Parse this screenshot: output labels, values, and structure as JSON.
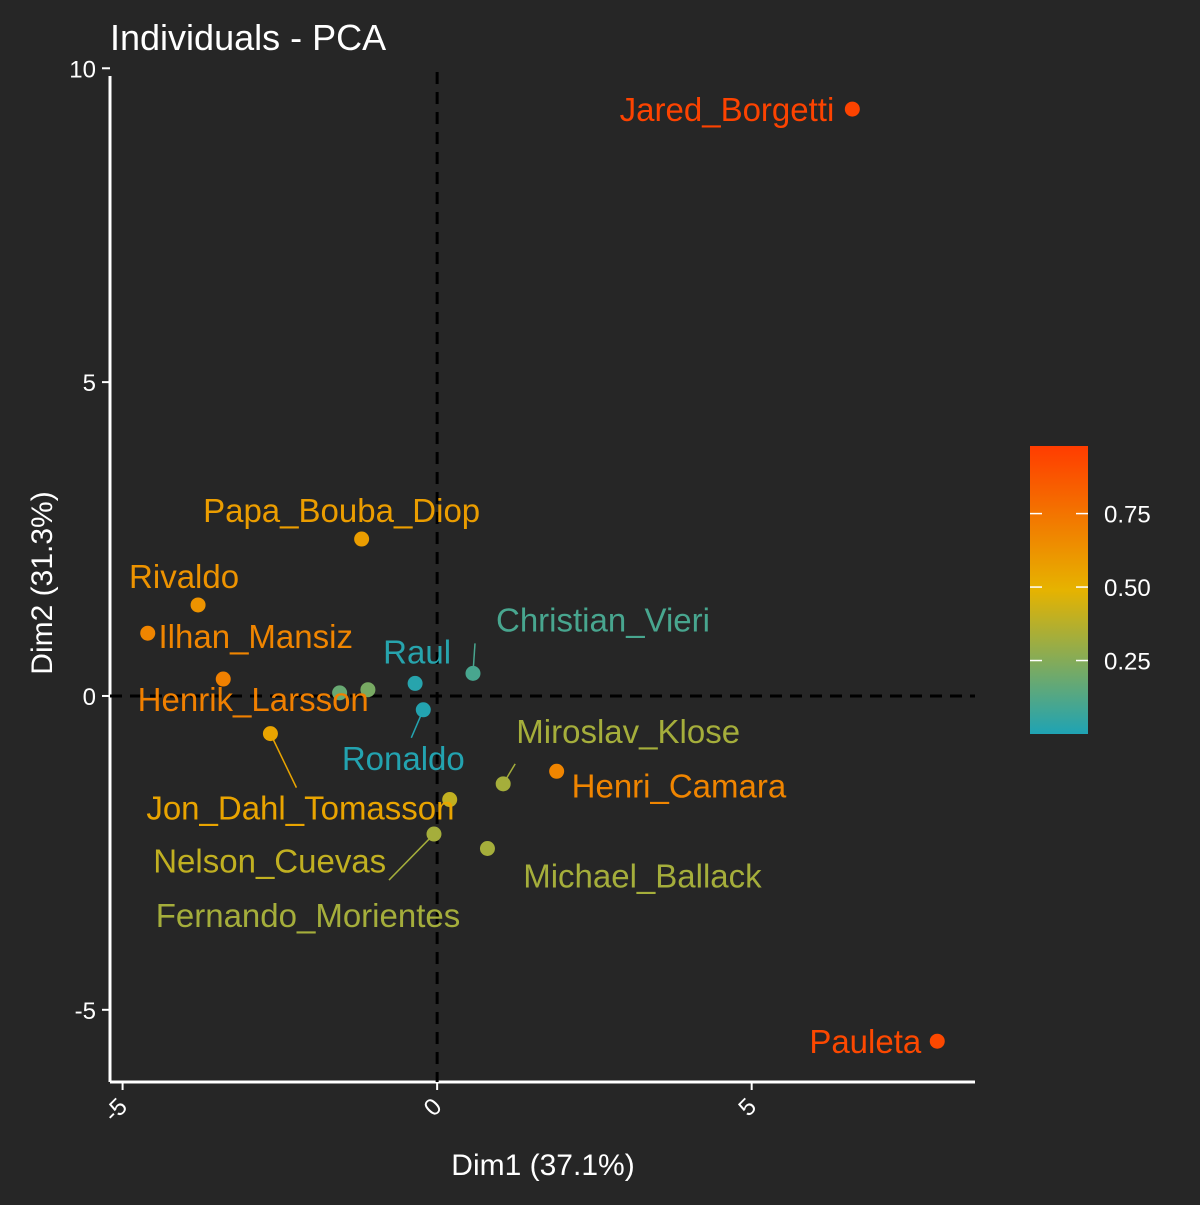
{
  "chart_data": {
    "type": "scatter",
    "title": "Individuals - PCA",
    "xlabel": "Dim1 (37.1%)",
    "ylabel": "Dim2 (31.3%)",
    "xlim": [
      -5.2,
      8.55
    ],
    "ylim": [
      -6.15,
      10.1
    ],
    "x_ticks": [
      {
        "value": -5,
        "label": "-5"
      },
      {
        "value": 0,
        "label": "0"
      },
      {
        "value": 5,
        "label": "5"
      }
    ],
    "y_ticks": [
      {
        "value": 10,
        "label": "10"
      },
      {
        "value": 5,
        "label": "5"
      },
      {
        "value": 0,
        "label": "0"
      },
      {
        "value": -5,
        "label": "-5"
      }
    ],
    "reference_lines": {
      "x": 0,
      "y": 0,
      "style": "dashed"
    },
    "grid": false,
    "legend": {
      "placement": "right",
      "type": "continuous colorbar",
      "range": [
        0.0,
        0.98
      ],
      "ticks": [
        {
          "value": 0.75,
          "label": "0.75"
        },
        {
          "value": 0.5,
          "label": "0.50"
        },
        {
          "value": 0.25,
          "label": "0.25"
        }
      ],
      "colors": [
        "#1fa3b4",
        "#e6b300",
        "#ff3c00"
      ]
    },
    "points": [
      {
        "label": "Jared_Borgetti",
        "x": 6.6,
        "y": 9.35,
        "value": 0.95
      },
      {
        "label": "Pauleta",
        "x": 7.95,
        "y": -5.5,
        "value": 0.93
      },
      {
        "label": "Papa_Bouba_Diop",
        "x": -1.2,
        "y": 2.5,
        "value": 0.58
      },
      {
        "label": "Rivaldo",
        "x": -3.8,
        "y": 1.45,
        "value": 0.62
      },
      {
        "label": "Ilhan_Mansiz",
        "x": -4.6,
        "y": 1.0,
        "value": 0.68
      },
      {
        "label": "Henrik_Larsson",
        "x": -3.4,
        "y": 0.27,
        "value": 0.7
      },
      {
        "label": "Raul",
        "x": -0.35,
        "y": 0.2,
        "value": 0.02
      },
      {
        "label": "Christian_Vieri",
        "x": 0.57,
        "y": 0.36,
        "value": 0.1
      },
      {
        "label": "Ronaldo",
        "x": -0.22,
        "y": -0.22,
        "value": 0.01
      },
      {
        "label": "",
        "x": -1.55,
        "y": 0.05,
        "value": 0.18
      },
      {
        "label": "",
        "x": -1.1,
        "y": 0.1,
        "value": 0.22
      },
      {
        "label": "Jon_Dahl_Tomasson",
        "x": -2.65,
        "y": -0.6,
        "value": 0.55
      },
      {
        "label": "Miroslav_Klose",
        "x": 1.05,
        "y": -1.4,
        "value": 0.33
      },
      {
        "label": "Henri_Camara",
        "x": 1.9,
        "y": -1.2,
        "value": 0.68
      },
      {
        "label": "Nelson_Cuevas",
        "x": 0.2,
        "y": -1.65,
        "value": 0.4
      },
      {
        "label": "Fernando_Morientes",
        "x": -0.05,
        "y": -2.2,
        "value": 0.33
      },
      {
        "label": "Michael_Ballack",
        "x": 0.8,
        "y": -2.43,
        "value": 0.33
      }
    ]
  }
}
